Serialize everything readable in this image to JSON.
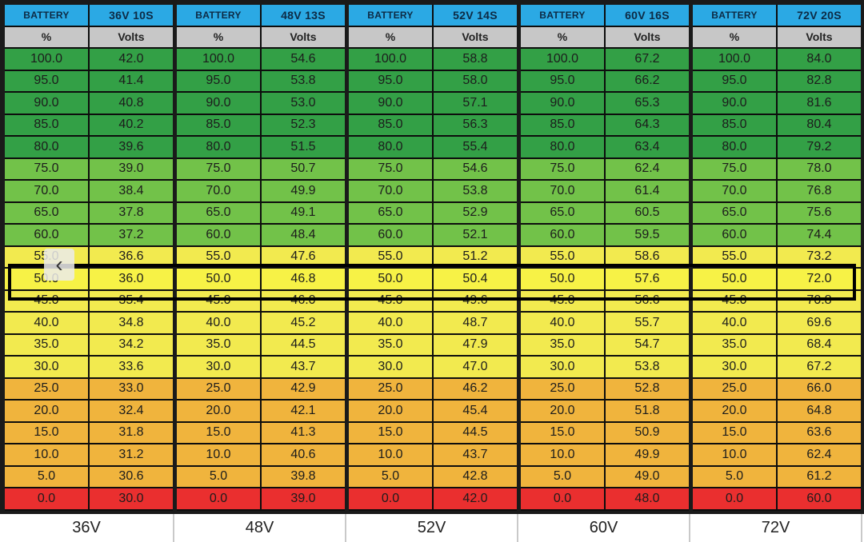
{
  "col_header_percent": "BATTERY",
  "sub_header_percent": "%",
  "sub_header_volts": "Volts",
  "percent_rows": [
    "100.0",
    "95.0",
    "90.0",
    "85.0",
    "80.0",
    "75.0",
    "70.0",
    "65.0",
    "60.0",
    "55.0",
    "50.0",
    "45.0",
    "40.0",
    "35.0",
    "30.0",
    "25.0",
    "20.0",
    "15.0",
    "10.0",
    "5.0",
    "0.0"
  ],
  "row_colors": [
    "#33a046",
    "#33a046",
    "#33a046",
    "#33a046",
    "#33a046",
    "#72c249",
    "#72c249",
    "#72c249",
    "#72c249",
    "#f2ea4f",
    "#f7f246",
    "#f2ea4f",
    "#f2ea4f",
    "#f2ea4f",
    "#f2ea4f",
    "#f0b43d",
    "#f0b43d",
    "#f0b43d",
    "#f0b43d",
    "#f0b43d",
    "#ea2f2f"
  ],
  "packs": [
    {
      "header": "36V 10S",
      "footer": "36V",
      "volts": [
        "42.0",
        "41.4",
        "40.8",
        "40.2",
        "39.6",
        "39.0",
        "38.4",
        "37.8",
        "37.2",
        "36.6",
        "36.0",
        "35.4",
        "34.8",
        "34.2",
        "33.6",
        "33.0",
        "32.4",
        "31.8",
        "31.2",
        "30.6",
        "30.0"
      ]
    },
    {
      "header": "48V 13S",
      "footer": "48V",
      "volts": [
        "54.6",
        "53.8",
        "53.0",
        "52.3",
        "51.5",
        "50.7",
        "49.9",
        "49.1",
        "48.4",
        "47.6",
        "46.8",
        "46.0",
        "45.2",
        "44.5",
        "43.7",
        "42.9",
        "42.1",
        "41.3",
        "40.6",
        "39.8",
        "39.0"
      ]
    },
    {
      "header": "52V 14S",
      "footer": "52V",
      "volts": [
        "58.8",
        "58.0",
        "57.1",
        "56.3",
        "55.4",
        "54.6",
        "53.8",
        "52.9",
        "52.1",
        "51.2",
        "50.4",
        "49.6",
        "48.7",
        "47.9",
        "47.0",
        "46.2",
        "45.4",
        "44.5",
        "43.7",
        "42.8",
        "42.0"
      ]
    },
    {
      "header": "60V 16S",
      "footer": "60V",
      "volts": [
        "67.2",
        "66.2",
        "65.3",
        "64.3",
        "63.4",
        "62.4",
        "61.4",
        "60.5",
        "59.5",
        "58.6",
        "57.6",
        "56.6",
        "55.7",
        "54.7",
        "53.8",
        "52.8",
        "51.8",
        "50.9",
        "49.9",
        "49.0",
        "48.0"
      ]
    },
    {
      "header": "72V 20S",
      "footer": "72V",
      "volts": [
        "84.0",
        "82.8",
        "81.6",
        "80.4",
        "79.2",
        "78.0",
        "76.8",
        "75.6",
        "74.4",
        "73.2",
        "72.0",
        "70.8",
        "69.6",
        "68.4",
        "67.2",
        "66.0",
        "64.8",
        "63.6",
        "62.4",
        "61.2",
        "60.0"
      ]
    }
  ],
  "back_icon": "chevron-left-icon"
}
